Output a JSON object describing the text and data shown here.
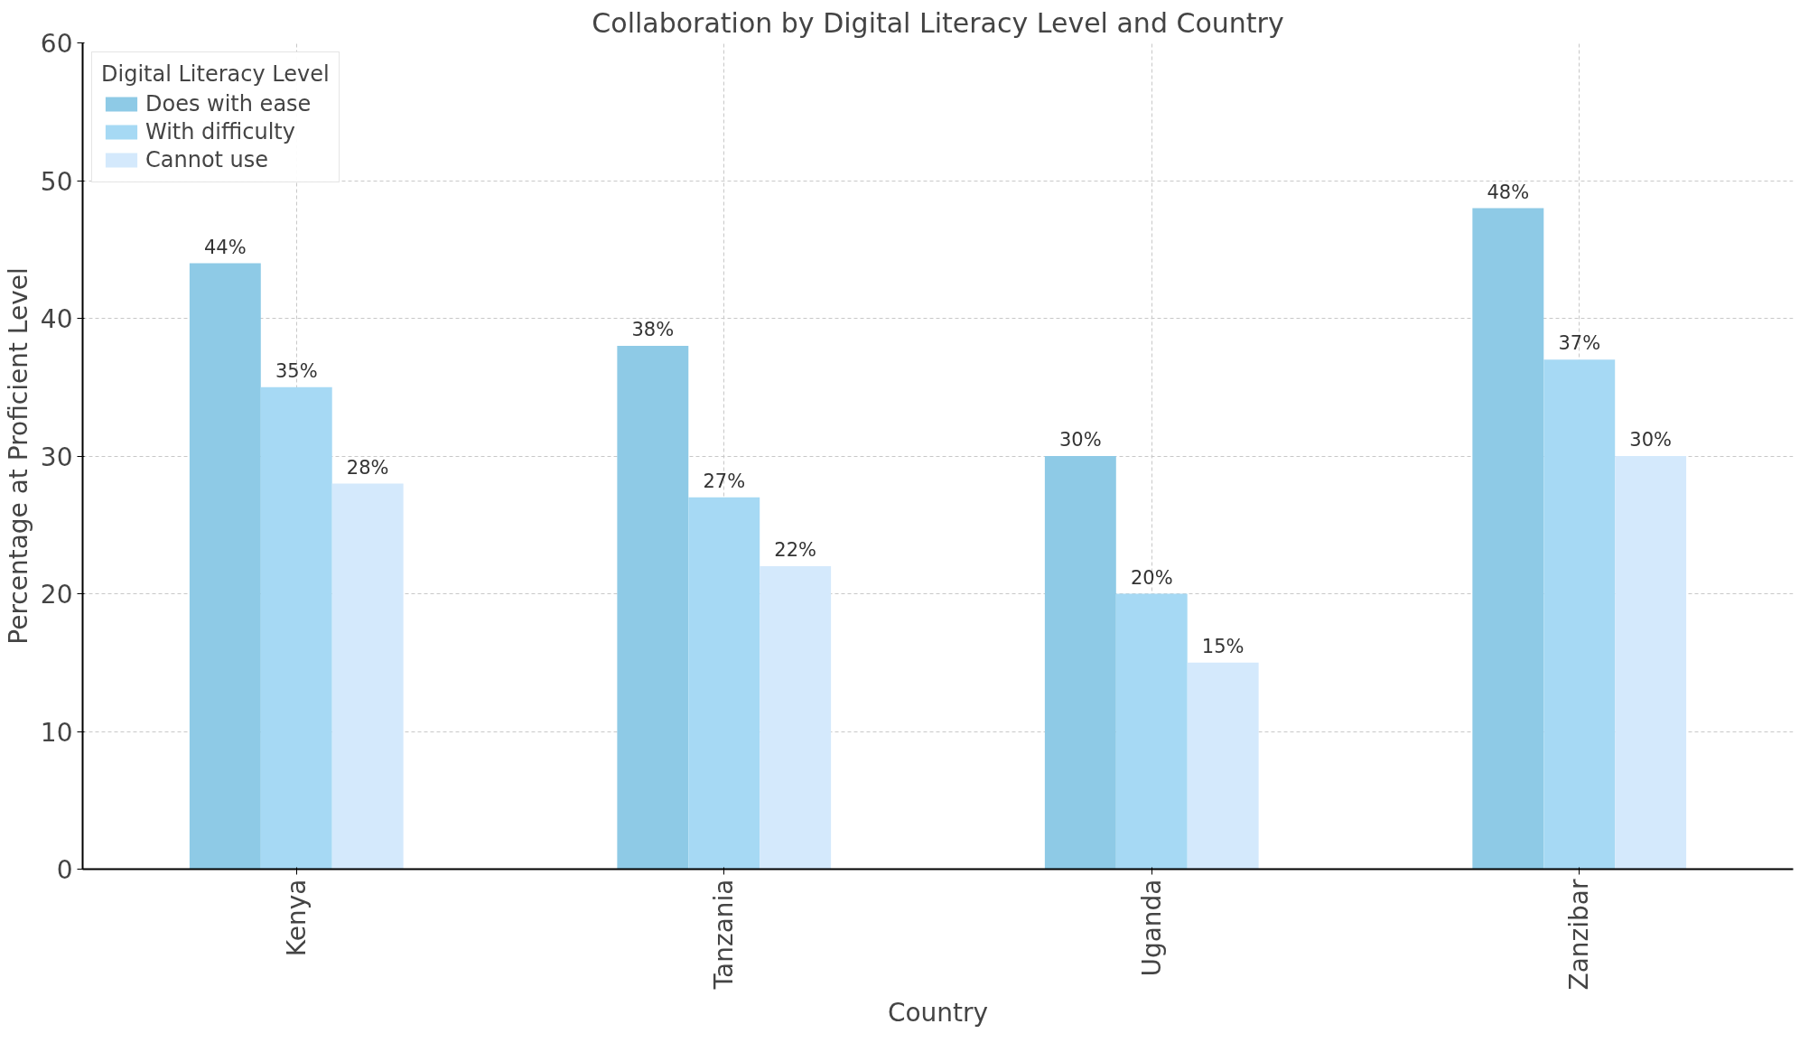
{
  "chart_data": {
    "type": "bar",
    "title": "Collaboration by Digital Literacy Level and Country",
    "xlabel": "Country",
    "ylabel": "Percentage at Proficient Level",
    "legend_title": "Digital Literacy Level",
    "categories": [
      "Kenya",
      "Tanzania",
      "Uganda",
      "Zanzibar"
    ],
    "series": [
      {
        "name": "Does with ease",
        "color": "#8ecae6",
        "values": [
          44,
          38,
          30,
          48
        ],
        "value_labels": [
          "44%",
          "38%",
          "30%",
          "48%"
        ]
      },
      {
        "name": "With difficulty",
        "color": "#a6d9f4",
        "values": [
          35,
          27,
          20,
          37
        ],
        "value_labels": [
          "35%",
          "27%",
          "20%",
          "37%"
        ]
      },
      {
        "name": "Cannot use",
        "color": "#d4e9fc",
        "values": [
          28,
          22,
          15,
          30
        ],
        "value_labels": [
          "28%",
          "22%",
          "15%",
          "30%"
        ]
      }
    ],
    "ylim": [
      0,
      60
    ],
    "yticks": [
      0,
      10,
      20,
      30,
      40,
      50,
      60
    ],
    "grid": true,
    "legend": "top left"
  }
}
